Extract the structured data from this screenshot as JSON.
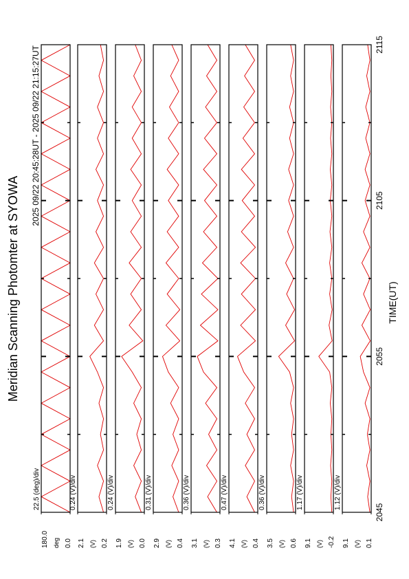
{
  "title": "Meridian Scanning Photomter at SYOWA",
  "subtitle": "2025 09/22 20:45:28UT - 2025 09/22 21:15:27UT",
  "xlabel": "TIME(UT)",
  "xlim": [
    0,
    30
  ],
  "xticks": [
    {
      "value": 0,
      "label": "2045"
    },
    {
      "value": 10,
      "label": "2055"
    },
    {
      "value": 20,
      "label": "2105"
    },
    {
      "value": 30,
      "label": "2115"
    }
  ],
  "xminorticks": [
    5,
    15,
    25
  ],
  "chart_data": [
    {
      "type": "line",
      "color": "#e00000",
      "annotation": "22.5 (deg)/div",
      "ylabel": "deg",
      "ylim": [
        0,
        180
      ],
      "yticks": [
        {
          "value": 180,
          "label": "180.0"
        },
        {
          "value": 0,
          "label": "0.0"
        }
      ],
      "x": [
        0,
        1,
        2,
        3,
        4,
        5,
        6,
        7,
        8,
        9,
        10,
        11,
        12,
        13,
        14,
        15,
        16,
        17,
        18,
        19,
        20,
        21,
        22,
        23,
        24,
        25,
        26,
        27,
        28,
        29,
        30
      ],
      "values": [
        0,
        180,
        0,
        180,
        0,
        180,
        0,
        180,
        0,
        180,
        0,
        180,
        0,
        180,
        0,
        180,
        0,
        180,
        0,
        180,
        0,
        180,
        0,
        180,
        0,
        180,
        0,
        180,
        0,
        180,
        0
      ]
    },
    {
      "type": "line",
      "color": "#e00000",
      "annotation": "0.24 (V)/div",
      "ylabel": "(V)",
      "ylim": [
        0.2,
        2.1
      ],
      "yticks": [
        2.1,
        0.2
      ],
      "x": [
        0,
        1,
        2,
        3,
        4,
        5,
        6,
        7,
        8,
        9,
        10,
        11,
        12,
        13,
        14,
        15,
        16,
        17,
        18,
        19,
        20,
        21,
        22,
        23,
        24,
        25,
        26,
        27,
        28,
        29,
        30
      ],
      "values": [
        0.4,
        0.7,
        0.4,
        0.8,
        0.4,
        0.6,
        0.4,
        0.7,
        0.4,
        0.8,
        1.3,
        0.4,
        1.0,
        0.4,
        0.9,
        0.4,
        1.0,
        0.4,
        0.9,
        0.4,
        0.8,
        0.4,
        0.9,
        0.4,
        0.8,
        0.4,
        0.8,
        0.4,
        0.7,
        0.4,
        0.6
      ]
    },
    {
      "type": "line",
      "color": "#e00000",
      "annotation": "0.24 (V)/div",
      "ylabel": "(V)",
      "ylim": [
        0.0,
        1.9
      ],
      "yticks": [
        1.9,
        {
          "value": 0,
          "label": "0.0"
        }
      ],
      "x": [
        0,
        1,
        2,
        3,
        4,
        5,
        6,
        7,
        8,
        9,
        10,
        11,
        12,
        13,
        14,
        15,
        16,
        17,
        18,
        19,
        20,
        21,
        22,
        23,
        24,
        25,
        26,
        27,
        28,
        29,
        30
      ],
      "values": [
        0.2,
        0.6,
        0.2,
        0.7,
        0.2,
        0.5,
        0.2,
        0.7,
        0.2,
        0.8,
        1.5,
        0.1,
        1.0,
        0.2,
        0.9,
        0.2,
        1.0,
        0.2,
        0.9,
        0.2,
        0.8,
        0.2,
        0.9,
        0.2,
        0.8,
        0.2,
        0.8,
        0.2,
        0.7,
        0.2,
        0.6
      ]
    },
    {
      "type": "line",
      "color": "#e00000",
      "annotation": "0.31 (V)/div",
      "ylabel": "(V)",
      "ylim": [
        0.4,
        2.9
      ],
      "yticks": [
        2.9,
        0.4
      ],
      "x": [
        0,
        1,
        2,
        3,
        4,
        5,
        6,
        7,
        8,
        9,
        10,
        11,
        12,
        13,
        14,
        15,
        16,
        17,
        18,
        19,
        20,
        21,
        22,
        23,
        24,
        25,
        26,
        27,
        28,
        29,
        30
      ],
      "values": [
        0.7,
        1.2,
        0.7,
        1.3,
        0.7,
        1.2,
        0.7,
        1.4,
        0.7,
        1.6,
        2.1,
        0.6,
        1.8,
        0.6,
        1.7,
        0.7,
        1.8,
        0.7,
        1.7,
        0.7,
        1.6,
        0.7,
        1.7,
        0.7,
        1.6,
        0.7,
        1.5,
        0.7,
        1.4,
        0.7,
        1.3
      ]
    },
    {
      "type": "line",
      "color": "#e00000",
      "annotation": "0.36 (V)/div",
      "ylabel": "(V)",
      "ylim": [
        0.3,
        3.1
      ],
      "yticks": [
        3.1,
        0.3
      ],
      "x": [
        0,
        1,
        2,
        3,
        4,
        5,
        6,
        7,
        8,
        9,
        10,
        11,
        12,
        13,
        14,
        15,
        16,
        17,
        18,
        19,
        20,
        21,
        22,
        23,
        24,
        25,
        26,
        27,
        28,
        29,
        30
      ],
      "values": [
        0.6,
        1.5,
        0.6,
        1.6,
        0.6,
        1.4,
        0.6,
        1.7,
        0.6,
        1.9,
        2.5,
        0.5,
        2.2,
        0.5,
        2.1,
        0.5,
        2.0,
        0.6,
        1.9,
        0.6,
        1.8,
        0.6,
        1.9,
        0.6,
        1.8,
        0.6,
        1.7,
        0.6,
        1.6,
        0.6,
        1.5
      ]
    },
    {
      "type": "line",
      "color": "#e00000",
      "annotation": "0.47 (V)/div",
      "ylabel": "(V)",
      "ylim": [
        0.4,
        4.1
      ],
      "yticks": [
        4.1,
        0.4
      ],
      "x": [
        0,
        1,
        2,
        3,
        4,
        5,
        6,
        7,
        8,
        9,
        10,
        11,
        12,
        13,
        14,
        15,
        16,
        17,
        18,
        19,
        20,
        21,
        22,
        23,
        24,
        25,
        26,
        27,
        28,
        29,
        30
      ],
      "values": [
        0.8,
        1.8,
        0.8,
        2.0,
        0.8,
        1.8,
        0.8,
        2.0,
        0.8,
        2.2,
        3.0,
        0.7,
        2.6,
        0.7,
        2.5,
        0.7,
        2.6,
        0.7,
        2.5,
        0.8,
        2.4,
        0.8,
        2.5,
        0.8,
        2.3,
        0.8,
        2.2,
        0.8,
        2.1,
        0.8,
        2.0
      ]
    },
    {
      "type": "line",
      "color": "#e00000",
      "annotation": "0.36 (V)/div",
      "ylabel": "(V)",
      "ylim": [
        0.6,
        3.5
      ],
      "yticks": [
        3.5,
        0.6
      ],
      "x": [
        0,
        1,
        2,
        3,
        4,
        5,
        6,
        7,
        8,
        9,
        10,
        11,
        12,
        13,
        14,
        15,
        16,
        17,
        18,
        19,
        20,
        21,
        22,
        23,
        24,
        25,
        26,
        27,
        28,
        29,
        30
      ],
      "values": [
        0.8,
        1.0,
        0.8,
        1.1,
        0.8,
        1.0,
        0.8,
        1.1,
        0.8,
        1.2,
        2.3,
        0.7,
        1.6,
        0.7,
        1.5,
        0.8,
        1.6,
        0.8,
        1.4,
        0.8,
        1.3,
        0.8,
        1.3,
        0.8,
        1.2,
        0.8,
        1.2,
        0.8,
        1.1,
        0.8,
        1.1
      ]
    },
    {
      "type": "line",
      "color": "#e00000",
      "annotation": "1.17 (V)/div",
      "ylabel": "(V)",
      "ylim": [
        -0.2,
        9.1
      ],
      "yticks": [
        9.1,
        -0.2
      ],
      "x": [
        0,
        1,
        2,
        3,
        4,
        5,
        6,
        7,
        8,
        9,
        10,
        11,
        12,
        13,
        14,
        15,
        16,
        17,
        18,
        19,
        20,
        21,
        22,
        23,
        24,
        25,
        26,
        27,
        28,
        29,
        30
      ],
      "values": [
        0.3,
        0.6,
        0.3,
        0.7,
        0.3,
        0.6,
        0.3,
        0.8,
        0.3,
        1.0,
        4.5,
        0.2,
        1.2,
        0.2,
        1.0,
        0.3,
        1.0,
        0.3,
        0.9,
        0.3,
        0.8,
        0.3,
        0.8,
        0.3,
        0.7,
        0.3,
        0.7,
        0.3,
        0.6,
        0.3,
        0.6
      ]
    },
    {
      "type": "line",
      "color": "#e00000",
      "annotation": "1.12 (V)/div",
      "ylabel": "(V)",
      "ylim": [
        0.1,
        9.1
      ],
      "yticks": [
        9.1,
        0.1
      ],
      "x": [
        0,
        1,
        2,
        3,
        4,
        5,
        6,
        7,
        8,
        9,
        10,
        11,
        12,
        13,
        14,
        15,
        16,
        17,
        18,
        19,
        20,
        21,
        22,
        23,
        24,
        25,
        26,
        27,
        28,
        29,
        30
      ],
      "values": [
        0.5,
        1.2,
        0.5,
        1.5,
        0.5,
        1.3,
        0.5,
        2.0,
        0.5,
        2.5,
        3.5,
        0.4,
        3.0,
        0.4,
        2.5,
        0.5,
        3.0,
        0.5,
        2.5,
        0.5,
        2.0,
        0.5,
        2.0,
        0.5,
        1.8,
        0.5,
        1.8,
        0.5,
        1.5,
        0.5,
        1.2
      ]
    }
  ]
}
